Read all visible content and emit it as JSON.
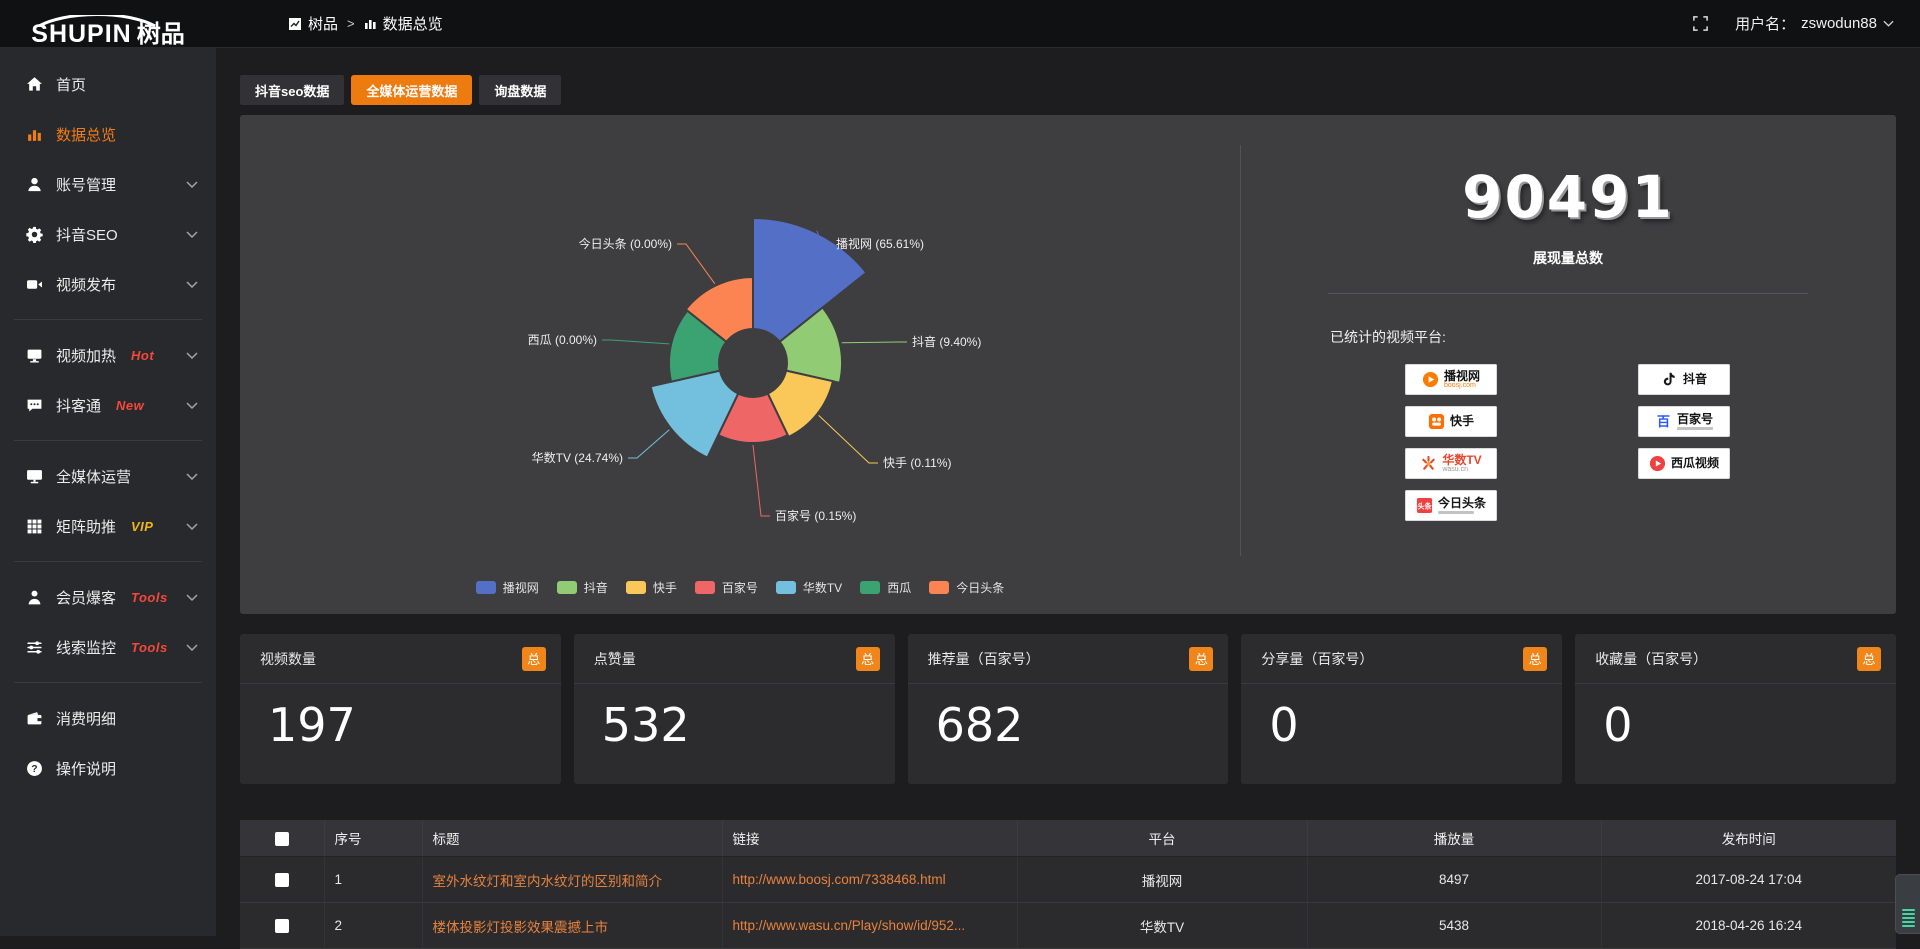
{
  "header": {
    "logo": {
      "brand": "SHUPIN",
      "cn": "树品"
    },
    "breadcrumb": {
      "root": "树品",
      "separator": ">",
      "current": "数据总览"
    },
    "user": {
      "label": "用户名：",
      "name": "zswodun88"
    }
  },
  "sidebar": {
    "items": [
      {
        "key": "home",
        "label": "首页",
        "icon": "home-icon",
        "active": false,
        "expandable": false
      },
      {
        "key": "data-overview",
        "label": "数据总览",
        "icon": "bar-chart-icon",
        "active": true,
        "expandable": false
      },
      {
        "key": "account-management",
        "label": "账号管理",
        "icon": "user-icon",
        "expandable": true
      },
      {
        "key": "douyin-seo",
        "label": "抖音SEO",
        "icon": "gear-icon",
        "expandable": true
      },
      {
        "key": "video-publish",
        "label": "视频发布",
        "icon": "video-camera-icon",
        "expandable": true,
        "divider_after": true
      },
      {
        "key": "video-heating",
        "label": "视频加热",
        "icon": "screen-icon",
        "badge": "Hot",
        "badge_color": "#f5483b",
        "expandable": true
      },
      {
        "key": "douketong",
        "label": "抖客通",
        "icon": "chat-bubble-icon",
        "badge": "New",
        "badge_color": "#f5483b",
        "expandable": true,
        "divider_after": true
      },
      {
        "key": "all-media-operation",
        "label": "全媒体运营",
        "icon": "monitor-icon",
        "expandable": true
      },
      {
        "key": "matrix-boost",
        "label": "矩阵助推",
        "icon": "grid-icon",
        "badge": "VIP",
        "badge_color": "#f0b41e",
        "expandable": true,
        "divider_after": true
      },
      {
        "key": "member-baoke",
        "label": "会员爆客",
        "icon": "person-icon",
        "badge": "Tools",
        "badge_color": "#f5483b",
        "expandable": true
      },
      {
        "key": "lead-monitor",
        "label": "线索监控",
        "icon": "sliders-icon",
        "badge": "Tools",
        "badge_color": "#f5483b",
        "expandable": true,
        "divider_after": true
      },
      {
        "key": "expense-detail",
        "label": "消费明细",
        "icon": "wallet-icon",
        "expandable": false
      },
      {
        "key": "operation-guide",
        "label": "操作说明",
        "icon": "help-icon",
        "expandable": false
      }
    ]
  },
  "tabs": [
    {
      "key": "douyin-seo-data",
      "label": "抖音seo数据",
      "active": false
    },
    {
      "key": "all-media-data",
      "label": "全媒体运营数据",
      "active": true
    },
    {
      "key": "inquiry-data",
      "label": "询盘数据",
      "active": false
    }
  ],
  "chart_data": {
    "type": "pie",
    "variant": "rose",
    "categories": [
      "播视网",
      "抖音",
      "快手",
      "百家号",
      "华数TV",
      "西瓜",
      "今日头条"
    ],
    "values_percent": [
      65.61,
      9.4,
      0.11,
      0.15,
      24.74,
      0,
      0
    ],
    "colors": [
      "#5470c6",
      "#91cc75",
      "#fac858",
      "#ee6666",
      "#73c0de",
      "#3ba272",
      "#fc8452"
    ],
    "label_format": "{name} ({value}%)",
    "legend_position": "bottom"
  },
  "summary": {
    "total": "90491",
    "total_label": "展现量总数",
    "platforms_title": "已统计的视频平台:",
    "platforms": [
      {
        "key": "boosj",
        "name": "播视网",
        "sub": "boosj.com",
        "sub_color": "#ff7b00"
      },
      {
        "key": "douyin",
        "name": "抖音"
      },
      {
        "key": "kuaishou",
        "name": "快手"
      },
      {
        "key": "baijiahao",
        "name": "百家号",
        "micro": true
      },
      {
        "key": "wasu",
        "name": "华数TV",
        "name_color": "#e8472f",
        "sub": "wasu.cn",
        "sub_color": "#999999"
      },
      {
        "key": "xigua",
        "name": "西瓜视频"
      },
      {
        "key": "toutiao",
        "name": "今日头条",
        "micro": true
      }
    ]
  },
  "stat_cards": [
    {
      "label": "视频数量",
      "badge": "总",
      "value": "197"
    },
    {
      "label": "点赞量",
      "badge": "总",
      "value": "532"
    },
    {
      "label": "推荐量（百家号）",
      "badge": "总",
      "value": "682"
    },
    {
      "label": "分享量（百家号）",
      "badge": "总",
      "value": "0"
    },
    {
      "label": "收藏量（百家号）",
      "badge": "总",
      "value": "0"
    }
  ],
  "table": {
    "headers": [
      "序号",
      "标题",
      "链接",
      "平台",
      "播放量",
      "发布时间"
    ],
    "rows": [
      {
        "no": "1",
        "title": "室外水纹灯和室内水纹灯的区别和简介",
        "url": "http://www.boosj.com/7338468.html",
        "platform": "播视网",
        "plays": "8497",
        "time": "2017-08-24 17:04"
      },
      {
        "no": "2",
        "title": "楼体投影灯投影效果震撼上市",
        "url": "http://www.wasu.cn/Play/show/id/952...",
        "platform": "华数TV",
        "plays": "5438",
        "time": "2018-04-26 16:24"
      }
    ]
  },
  "accent_colors": {
    "orange": "#ee7b0f",
    "link_orange": "#e8823c",
    "badge_red": "#f5483b",
    "vip_gold": "#f0b41e",
    "widget_green": "#45d6a2"
  }
}
